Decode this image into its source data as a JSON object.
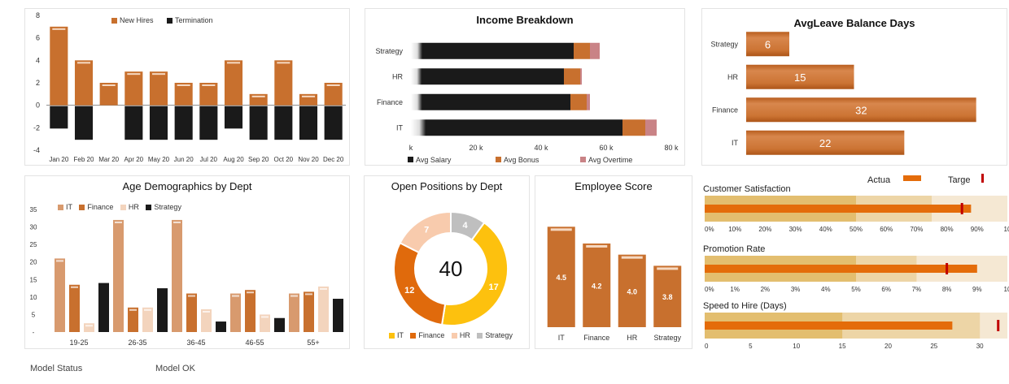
{
  "colors": {
    "orange": "#C8702E",
    "orange_light": "#D89A6E",
    "peach": "#F3D4BD",
    "black": "#1a1a1a",
    "mauve": "#C98386",
    "gold": "#FDC10E",
    "bright_orange": "#E06A0C",
    "gray": "#BFBFBF",
    "band_dark": "#E3BE6F",
    "band_mid": "#EDD5A6",
    "band_light": "#F5E8D3",
    "bar": "#E46C0A",
    "target": "#C00000"
  },
  "headcount": {
    "legend": [
      "New Hires",
      "Termination"
    ],
    "chart_data": {
      "type": "bar",
      "categories": [
        "Jan 20",
        "Feb 20",
        "Mar 20",
        "Apr 20",
        "May 20",
        "Jun 20",
        "Jul 20",
        "Aug 20",
        "Sep 20",
        "Oct 20",
        "Nov 20",
        "Dec 20"
      ],
      "series": [
        {
          "name": "New Hires",
          "values": [
            7,
            4,
            2,
            3,
            3,
            2,
            2,
            4,
            1,
            4,
            1,
            2
          ]
        },
        {
          "name": "Termination",
          "values": [
            -2,
            -3,
            0,
            -3,
            -3,
            -3,
            -3,
            -2,
            -3,
            -3,
            -3,
            -3
          ]
        }
      ],
      "yticks": [
        "8",
        "6",
        "4",
        "2",
        "0",
        "-2",
        "-4"
      ],
      "ylim": [
        -4,
        8
      ]
    }
  },
  "income": {
    "title": "Income Breakdown",
    "chart_data": {
      "type": "bar",
      "orientation": "horizontal",
      "stacked": true,
      "categories": [
        "Strategy",
        "HR",
        "Finance",
        "IT"
      ],
      "series": [
        {
          "name": "Avg Salary",
          "values": [
            50000,
            47000,
            49000,
            65000
          ]
        },
        {
          "name": "Avg Bonus",
          "values": [
            5000,
            5000,
            5000,
            7000
          ]
        },
        {
          "name": "Avg Overtime",
          "values": [
            3000,
            500,
            1000,
            3500
          ]
        }
      ],
      "xticks": [
        "k",
        "20 k",
        "40 k",
        "60 k",
        "80 k"
      ],
      "xlim": [
        0,
        80000
      ]
    }
  },
  "leave": {
    "title": "AvgLeave Balance Days",
    "chart_data": {
      "type": "bar",
      "orientation": "horizontal",
      "categories": [
        "Strategy",
        "HR",
        "Finance",
        "IT"
      ],
      "values": [
        6,
        15,
        32,
        22
      ],
      "labels": [
        "6",
        "15",
        "32",
        "22"
      ],
      "xlim": [
        0,
        36
      ]
    }
  },
  "age": {
    "title": "Age Demographics by Dept",
    "legend": [
      "IT",
      "Finance",
      "HR",
      "Strategy"
    ],
    "chart_data": {
      "type": "bar",
      "categories": [
        "19-25",
        "26-35",
        "36-45",
        "46-55",
        "55+"
      ],
      "series": [
        {
          "name": "IT",
          "values": [
            21,
            32,
            32,
            11,
            11
          ]
        },
        {
          "name": "Finance",
          "values": [
            13.5,
            7,
            11,
            12,
            11.5
          ]
        },
        {
          "name": "HR",
          "values": [
            2.5,
            7,
            6.5,
            5,
            13
          ]
        },
        {
          "name": "Strategy",
          "values": [
            14,
            12.5,
            3,
            4,
            9.5
          ]
        }
      ],
      "yticks": [
        "35",
        "30",
        "25",
        "20",
        "15",
        "10",
        "5",
        "-"
      ],
      "ylim": [
        0,
        35
      ]
    }
  },
  "open": {
    "title": "Open Positions by Dept",
    "center": "40",
    "legend": [
      "IT",
      "Finance",
      "HR",
      "Strategy"
    ],
    "chart_data": {
      "type": "pie",
      "labels": [
        "Strategy",
        "IT",
        "Finance",
        "HR"
      ],
      "values": [
        4,
        17,
        12,
        7
      ],
      "value_labels": [
        "4",
        "17",
        "12",
        "7"
      ]
    }
  },
  "score": {
    "title": "Employee Score",
    "chart_data": {
      "type": "bar",
      "categories": [
        "IT",
        "Finance",
        "HR",
        "Strategy"
      ],
      "values": [
        4.5,
        4.2,
        4.0,
        3.8
      ],
      "labels": [
        "4.5",
        "4.2",
        "4.0",
        "3.8"
      ],
      "ylim": [
        2.7,
        4.65
      ]
    }
  },
  "bullets": {
    "legend": {
      "actual": "Actua",
      "target": "Targe"
    },
    "items": [
      {
        "title": "Customer Satisfaction",
        "actual": 0.88,
        "target": 0.85,
        "bands": [
          0.5,
          0.75,
          1.0
        ],
        "max": 1.0,
        "ticks": [
          "0%",
          "10%",
          "20%",
          "30%",
          "40%",
          "50%",
          "60%",
          "70%",
          "80%",
          "90%",
          "10"
        ]
      },
      {
        "title": "Promotion Rate",
        "actual": 0.09,
        "target": 0.08,
        "bands": [
          0.05,
          0.07,
          0.1
        ],
        "max": 0.1,
        "ticks": [
          "0%",
          "1%",
          "2%",
          "3%",
          "4%",
          "5%",
          "6%",
          "7%",
          "8%",
          "9%",
          "10"
        ]
      },
      {
        "title": "Speed to Hire (Days)",
        "actual": 27,
        "target": 32,
        "bands": [
          15,
          30,
          33
        ],
        "max": 33,
        "ticks": [
          "0",
          "5",
          "10",
          "15",
          "20",
          "25",
          "30"
        ]
      }
    ]
  },
  "status": {
    "label": "Model Status",
    "value": "Model OK"
  }
}
